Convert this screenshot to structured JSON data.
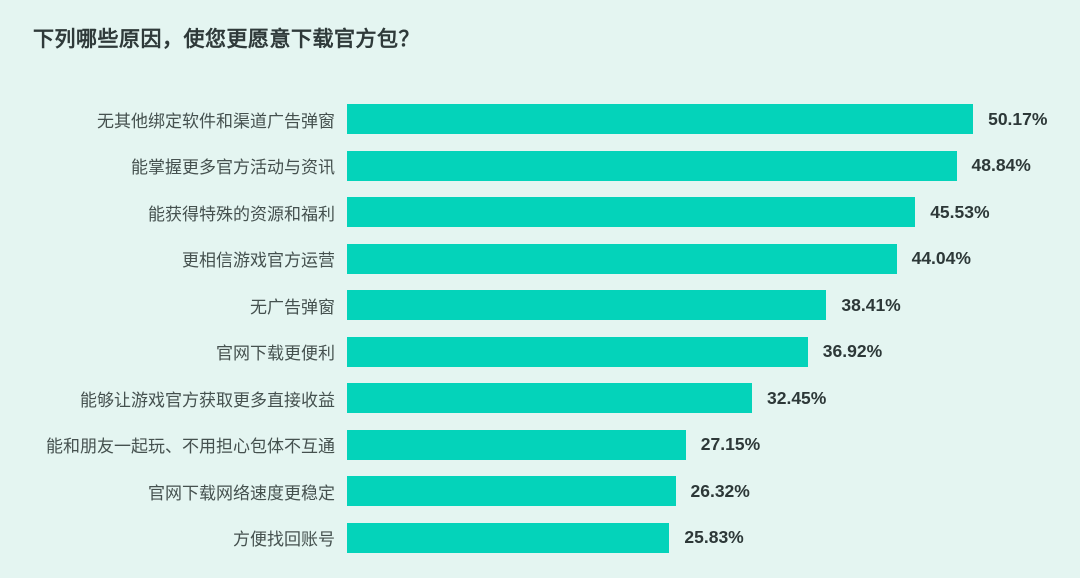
{
  "chart_data": {
    "type": "bar",
    "orientation": "horizontal",
    "title": "下列哪些原因，使您更愿意下载官方包？",
    "categories": [
      "无其他绑定软件和渠道广告弹窗",
      "能掌握更多官方活动与资讯",
      "能获得特殊的资源和福利",
      "更相信游戏官方运营",
      "无广告弹窗",
      "官网下载更便利",
      "能够让游戏官方获取更多直接收益",
      "能和朋友一起玩、不用担心包体不互通",
      "官网下载网络速度更稳定",
      "方便找回账号"
    ],
    "values": [
      50.17,
      48.84,
      45.53,
      44.04,
      38.41,
      36.92,
      32.45,
      27.15,
      26.32,
      25.83
    ],
    "value_labels": [
      "50.17%",
      "48.84%",
      "45.53%",
      "44.04%",
      "38.41%",
      "36.92%",
      "32.45%",
      "27.15%",
      "26.32%",
      "25.83%"
    ],
    "xlabel": "",
    "ylabel": "",
    "xlim": [
      0,
      55
    ],
    "grid": false,
    "legend": false,
    "value_label_position": "right-of-bar"
  },
  "colors": {
    "background": "#e4f5f1",
    "bar": "#04d3ba",
    "title_text": "#2f3a3a",
    "category_text": "#45514f",
    "value_text": "#2d3838"
  }
}
